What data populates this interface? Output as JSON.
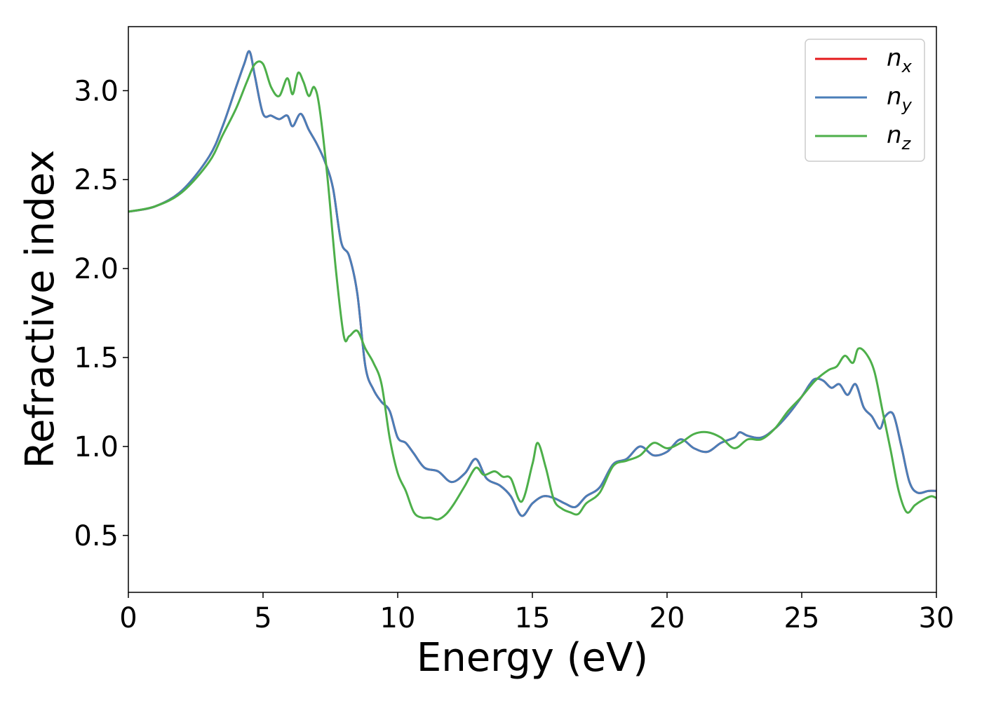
{
  "chart_data": {
    "type": "line",
    "title": "",
    "xlabel": "Energy (eV)",
    "ylabel": "Refractive index",
    "xlim": [
      0,
      30
    ],
    "ylim": [
      0.18,
      3.36
    ],
    "xticks": [
      0,
      5,
      10,
      15,
      20,
      25,
      30
    ],
    "yticks": [
      0.5,
      1.0,
      1.5,
      2.0,
      2.5,
      3.0
    ],
    "xtick_labels": [
      "0",
      "5",
      "10",
      "15",
      "20",
      "25",
      "30"
    ],
    "ytick_labels": [
      "0.5",
      "1.0",
      "1.5",
      "2.0",
      "2.5",
      "3.0"
    ],
    "grid": false,
    "legend_position": "top-right",
    "series": [
      {
        "name": "n_x",
        "label_base": "n",
        "label_sub": "x",
        "color": "#e41a1c",
        "x": [
          0,
          1,
          2,
          3,
          3.5,
          4,
          4.3,
          4.5,
          4.7,
          5,
          5.3,
          5.6,
          5.9,
          6.1,
          6.4,
          6.7,
          7,
          7.3,
          7.6,
          7.9,
          8.2,
          8.5,
          8.8,
          9.1,
          9.4,
          9.7,
          10,
          10.3,
          10.6,
          11,
          11.5,
          12,
          12.5,
          12.9,
          13.3,
          13.8,
          14.2,
          14.6,
          15,
          15.4,
          15.8,
          16.2,
          16.6,
          17,
          17.5,
          18,
          18.5,
          19,
          19.5,
          20,
          20.5,
          21,
          21.5,
          22,
          22.5,
          22.7,
          23,
          23.5,
          24,
          24.5,
          25,
          25.3,
          25.5,
          25.8,
          26.1,
          26.4,
          26.7,
          27,
          27.3,
          27.6,
          27.9,
          28.1,
          28.4,
          28.7,
          29,
          29.3,
          29.7,
          30
        ],
        "y": [
          2.32,
          2.35,
          2.44,
          2.63,
          2.8,
          3.02,
          3.15,
          3.22,
          3.08,
          2.87,
          2.86,
          2.84,
          2.86,
          2.8,
          2.87,
          2.78,
          2.7,
          2.6,
          2.45,
          2.15,
          2.07,
          1.86,
          1.45,
          1.32,
          1.25,
          1.2,
          1.05,
          1.02,
          0.96,
          0.88,
          0.86,
          0.8,
          0.85,
          0.93,
          0.82,
          0.78,
          0.72,
          0.61,
          0.68,
          0.72,
          0.71,
          0.68,
          0.66,
          0.72,
          0.77,
          0.9,
          0.93,
          1.0,
          0.95,
          0.97,
          1.04,
          0.99,
          0.97,
          1.02,
          1.05,
          1.08,
          1.06,
          1.05,
          1.1,
          1.18,
          1.28,
          1.35,
          1.38,
          1.37,
          1.33,
          1.35,
          1.29,
          1.35,
          1.22,
          1.17,
          1.1,
          1.17,
          1.18,
          1.0,
          0.8,
          0.74,
          0.75,
          0.75
        ]
      },
      {
        "name": "n_y",
        "label_base": "n",
        "label_sub": "y",
        "color": "#4a7eb8",
        "x": [
          0,
          1,
          2,
          3,
          3.5,
          4,
          4.3,
          4.5,
          4.7,
          5,
          5.3,
          5.6,
          5.9,
          6.1,
          6.4,
          6.7,
          7,
          7.3,
          7.6,
          7.9,
          8.2,
          8.5,
          8.8,
          9.1,
          9.4,
          9.7,
          10,
          10.3,
          10.6,
          11,
          11.5,
          12,
          12.5,
          12.9,
          13.3,
          13.8,
          14.2,
          14.6,
          15,
          15.4,
          15.8,
          16.2,
          16.6,
          17,
          17.5,
          18,
          18.5,
          19,
          19.5,
          20,
          20.5,
          21,
          21.5,
          22,
          22.5,
          22.7,
          23,
          23.5,
          24,
          24.5,
          25,
          25.3,
          25.5,
          25.8,
          26.1,
          26.4,
          26.7,
          27,
          27.3,
          27.6,
          27.9,
          28.1,
          28.4,
          28.7,
          29,
          29.3,
          29.7,
          30
        ],
        "y": [
          2.32,
          2.35,
          2.44,
          2.63,
          2.8,
          3.02,
          3.15,
          3.22,
          3.08,
          2.87,
          2.86,
          2.84,
          2.86,
          2.8,
          2.87,
          2.78,
          2.7,
          2.6,
          2.45,
          2.15,
          2.07,
          1.86,
          1.45,
          1.32,
          1.25,
          1.2,
          1.05,
          1.02,
          0.96,
          0.88,
          0.86,
          0.8,
          0.85,
          0.93,
          0.82,
          0.78,
          0.72,
          0.61,
          0.68,
          0.72,
          0.71,
          0.68,
          0.66,
          0.72,
          0.77,
          0.9,
          0.93,
          1.0,
          0.95,
          0.97,
          1.04,
          0.99,
          0.97,
          1.02,
          1.05,
          1.08,
          1.06,
          1.05,
          1.1,
          1.18,
          1.28,
          1.35,
          1.38,
          1.37,
          1.33,
          1.35,
          1.29,
          1.35,
          1.22,
          1.17,
          1.1,
          1.17,
          1.18,
          1.0,
          0.8,
          0.74,
          0.75,
          0.75
        ]
      },
      {
        "name": "n_z",
        "label_base": "n",
        "label_sub": "z",
        "color": "#4daf4a",
        "x": [
          0,
          1,
          2,
          3,
          3.5,
          4,
          4.4,
          4.7,
          5,
          5.3,
          5.6,
          5.9,
          6.1,
          6.3,
          6.5,
          6.7,
          6.9,
          7.1,
          7.4,
          7.7,
          8,
          8.2,
          8.5,
          8.8,
          9.1,
          9.4,
          9.7,
          10,
          10.3,
          10.6,
          10.9,
          11.2,
          11.5,
          11.8,
          12.1,
          12.5,
          12.9,
          13.2,
          13.6,
          13.9,
          14.2,
          14.6,
          15,
          15.2,
          15.5,
          15.8,
          16.1,
          16.4,
          16.7,
          17,
          17.5,
          18,
          18.5,
          19,
          19.5,
          20,
          20.5,
          21,
          21.5,
          22,
          22.5,
          23,
          23.5,
          24,
          24.5,
          25,
          25.5,
          26,
          26.3,
          26.6,
          26.9,
          27.1,
          27.4,
          27.7,
          28,
          28.3,
          28.6,
          28.9,
          29.2,
          29.5,
          29.8,
          30
        ],
        "y": [
          2.32,
          2.35,
          2.43,
          2.6,
          2.75,
          2.9,
          3.05,
          3.15,
          3.15,
          3.02,
          2.97,
          3.07,
          2.98,
          3.1,
          3.05,
          2.97,
          3.02,
          2.9,
          2.5,
          2.0,
          1.62,
          1.62,
          1.65,
          1.55,
          1.47,
          1.35,
          1.05,
          0.85,
          0.75,
          0.63,
          0.6,
          0.6,
          0.59,
          0.62,
          0.68,
          0.78,
          0.88,
          0.84,
          0.86,
          0.83,
          0.82,
          0.69,
          0.9,
          1.02,
          0.88,
          0.7,
          0.65,
          0.63,
          0.62,
          0.68,
          0.74,
          0.89,
          0.92,
          0.95,
          1.02,
          0.99,
          1.02,
          1.07,
          1.08,
          1.05,
          0.99,
          1.04,
          1.04,
          1.1,
          1.2,
          1.28,
          1.37,
          1.43,
          1.45,
          1.51,
          1.47,
          1.55,
          1.52,
          1.42,
          1.2,
          0.98,
          0.75,
          0.63,
          0.67,
          0.7,
          0.72,
          0.71
        ]
      }
    ]
  }
}
